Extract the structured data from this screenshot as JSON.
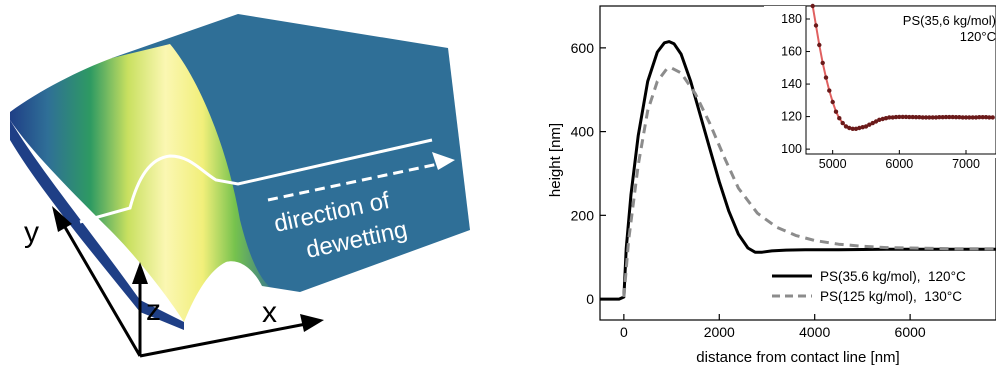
{
  "schematic": {
    "direction_line1": "direction of",
    "direction_line2": "dewetting",
    "axis_x": "x",
    "axis_y": "y",
    "axis_z": "z",
    "colors": {
      "film": "#2f6f97",
      "rim_peak": "#fbf7b2",
      "rim_mid": "#c9e060",
      "rim_green": "#2e9a62",
      "substrate_edge": "#1f3f86"
    }
  },
  "chart_data": [
    {
      "type": "line",
      "xlabel": "distance from contact line [nm]",
      "ylabel": "height [nm]",
      "xlim": [
        -500,
        7800
      ],
      "ylim": [
        -50,
        700
      ],
      "xticks": [
        0,
        2000,
        4000,
        6000
      ],
      "yticks": [
        0,
        200,
        400,
        600
      ],
      "legend_position": "bottom-right",
      "series": [
        {
          "name": "PS(35.6 kg/mol),  120°C",
          "style": "solid",
          "color": "#000000",
          "x": [
            -500,
            -100,
            0,
            50,
            150,
            300,
            500,
            700,
            850,
            950,
            1050,
            1200,
            1400,
            1600,
            1800,
            2000,
            2200,
            2400,
            2600,
            2750,
            2900,
            3100,
            3400,
            3800,
            4500,
            5500,
            6500,
            7800
          ],
          "y": [
            0,
            0,
            5,
            120,
            250,
            390,
            520,
            590,
            612,
            615,
            610,
            585,
            520,
            440,
            360,
            280,
            210,
            155,
            122,
            112,
            112,
            115,
            117,
            118,
            118,
            119,
            119,
            119
          ]
        },
        {
          "name": "PS(125 kg/mol),  130°C",
          "style": "dashed",
          "color": "#8c8c8c",
          "x": [
            0,
            100,
            300,
            500,
            700,
            900,
            1000,
            1200,
            1500,
            1800,
            2100,
            2400,
            2800,
            3200,
            3600,
            4000,
            4500,
            5000,
            5500,
            6000,
            6500,
            7000,
            7800
          ],
          "y": [
            5,
            140,
            320,
            450,
            520,
            550,
            552,
            540,
            490,
            420,
            340,
            265,
            205,
            172,
            152,
            140,
            131,
            126,
            123,
            122,
            121,
            120,
            120
          ]
        }
      ]
    },
    {
      "type": "scatter",
      "inset": true,
      "xlim": [
        4600,
        7450
      ],
      "ylim": [
        97,
        188
      ],
      "xticks": [
        5000,
        6000,
        7000
      ],
      "yticks": [
        100,
        120,
        140,
        160,
        180
      ],
      "annotation_line1": "PS(35,6 kg/mol)",
      "annotation_line2": "120°C",
      "series": [
        {
          "style": "points+fit",
          "point_color": "#6b1a1a",
          "fit_color": "#e06060",
          "x": [
            4700,
            4750,
            4800,
            4850,
            4900,
            4950,
            5000,
            5050,
            5100,
            5150,
            5200,
            5250,
            5300,
            5350,
            5400,
            5450,
            5500,
            5550,
            5600,
            5650,
            5700,
            5750,
            5800,
            5850,
            5900,
            5950,
            6000,
            6050,
            6100,
            6150,
            6200,
            6250,
            6300,
            6350,
            6400,
            6450,
            6500,
            6550,
            6600,
            6650,
            6700,
            6750,
            6800,
            6850,
            6900,
            6950,
            7000,
            7050,
            7100,
            7150,
            7200,
            7250,
            7300,
            7350,
            7400
          ],
          "y": [
            188,
            176,
            164,
            153,
            144,
            136,
            129,
            123,
            119,
            116,
            114,
            113,
            112.5,
            112.5,
            113,
            113.5,
            114,
            115,
            116,
            117,
            118,
            118.5,
            119,
            119.5,
            119.5,
            119.7,
            119.8,
            119.8,
            119.8,
            119.7,
            119.7,
            119.6,
            119.6,
            119.5,
            119.5,
            119.5,
            119.5,
            119.5,
            119.6,
            119.6,
            119.7,
            119.7,
            119.7,
            119.6,
            119.6,
            119.5,
            119.5,
            119.5,
            119.5,
            119.5,
            119.6,
            119.6,
            119.6,
            119.5,
            119.5
          ]
        }
      ]
    }
  ]
}
